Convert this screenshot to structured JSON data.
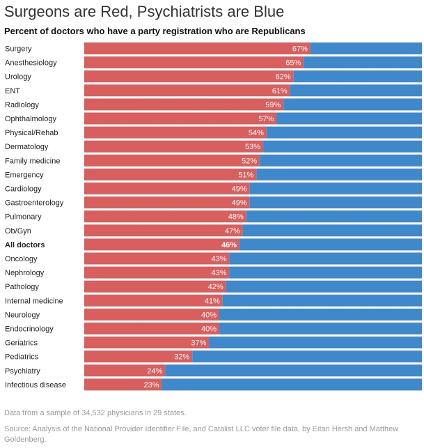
{
  "title": "Surgeons are Red, Psychiatrists are Blue",
  "subtitle": "Percent of doctors who have a party registration who are Republicans",
  "note": "Data from a sample of 34,532 physicians in 29 states.",
  "source": "Source: Analysis of the National Provider Identifier File, and Catalist LLC voter file data, by Eitan Hersh and Matthew Goldenberg.",
  "colors": {
    "republican": "#d95f5f",
    "democrat": "#3f88cc",
    "label": "#ffffff",
    "text": "#222222"
  },
  "chart_data": {
    "type": "bar",
    "orientation": "horizontal",
    "stacked": true,
    "value_format": "percent",
    "xlim": [
      0,
      100
    ],
    "highlight_category": "All doctors",
    "categories": [
      "Surgery",
      "Anesthesiology",
      "Urology",
      "ENT",
      "Radiology",
      "Ophthalmology",
      "Physical/Rehab",
      "Dermatology",
      "Family medicine",
      "Emergency",
      "Cardiology",
      "Gastroenterology",
      "Pulmonary",
      "Ob/Gyn",
      "All doctors",
      "Oncology",
      "Nephrology",
      "Pathology",
      "Internal medicine",
      "Neurology",
      "Endocrinology",
      "Geriatrics",
      "Pediatrics",
      "Psychiatry",
      "Infectious disease"
    ],
    "values": [
      67,
      65,
      62,
      61,
      59,
      57,
      54,
      53,
      52,
      51,
      49,
      49,
      48,
      47,
      46,
      43,
      43,
      42,
      41,
      40,
      40,
      37,
      32,
      24,
      23
    ],
    "data_labels": [
      "67%",
      "65%",
      "62%",
      "61%",
      "59%",
      "57%",
      "54%",
      "53%",
      "52%",
      "51%",
      "49%",
      "49%",
      "48%",
      "47%",
      "46%",
      "43%",
      "43%",
      "42%",
      "41%",
      "40%",
      "40%",
      "37%",
      "32%",
      "24%",
      "23%"
    ],
    "grid": false
  }
}
